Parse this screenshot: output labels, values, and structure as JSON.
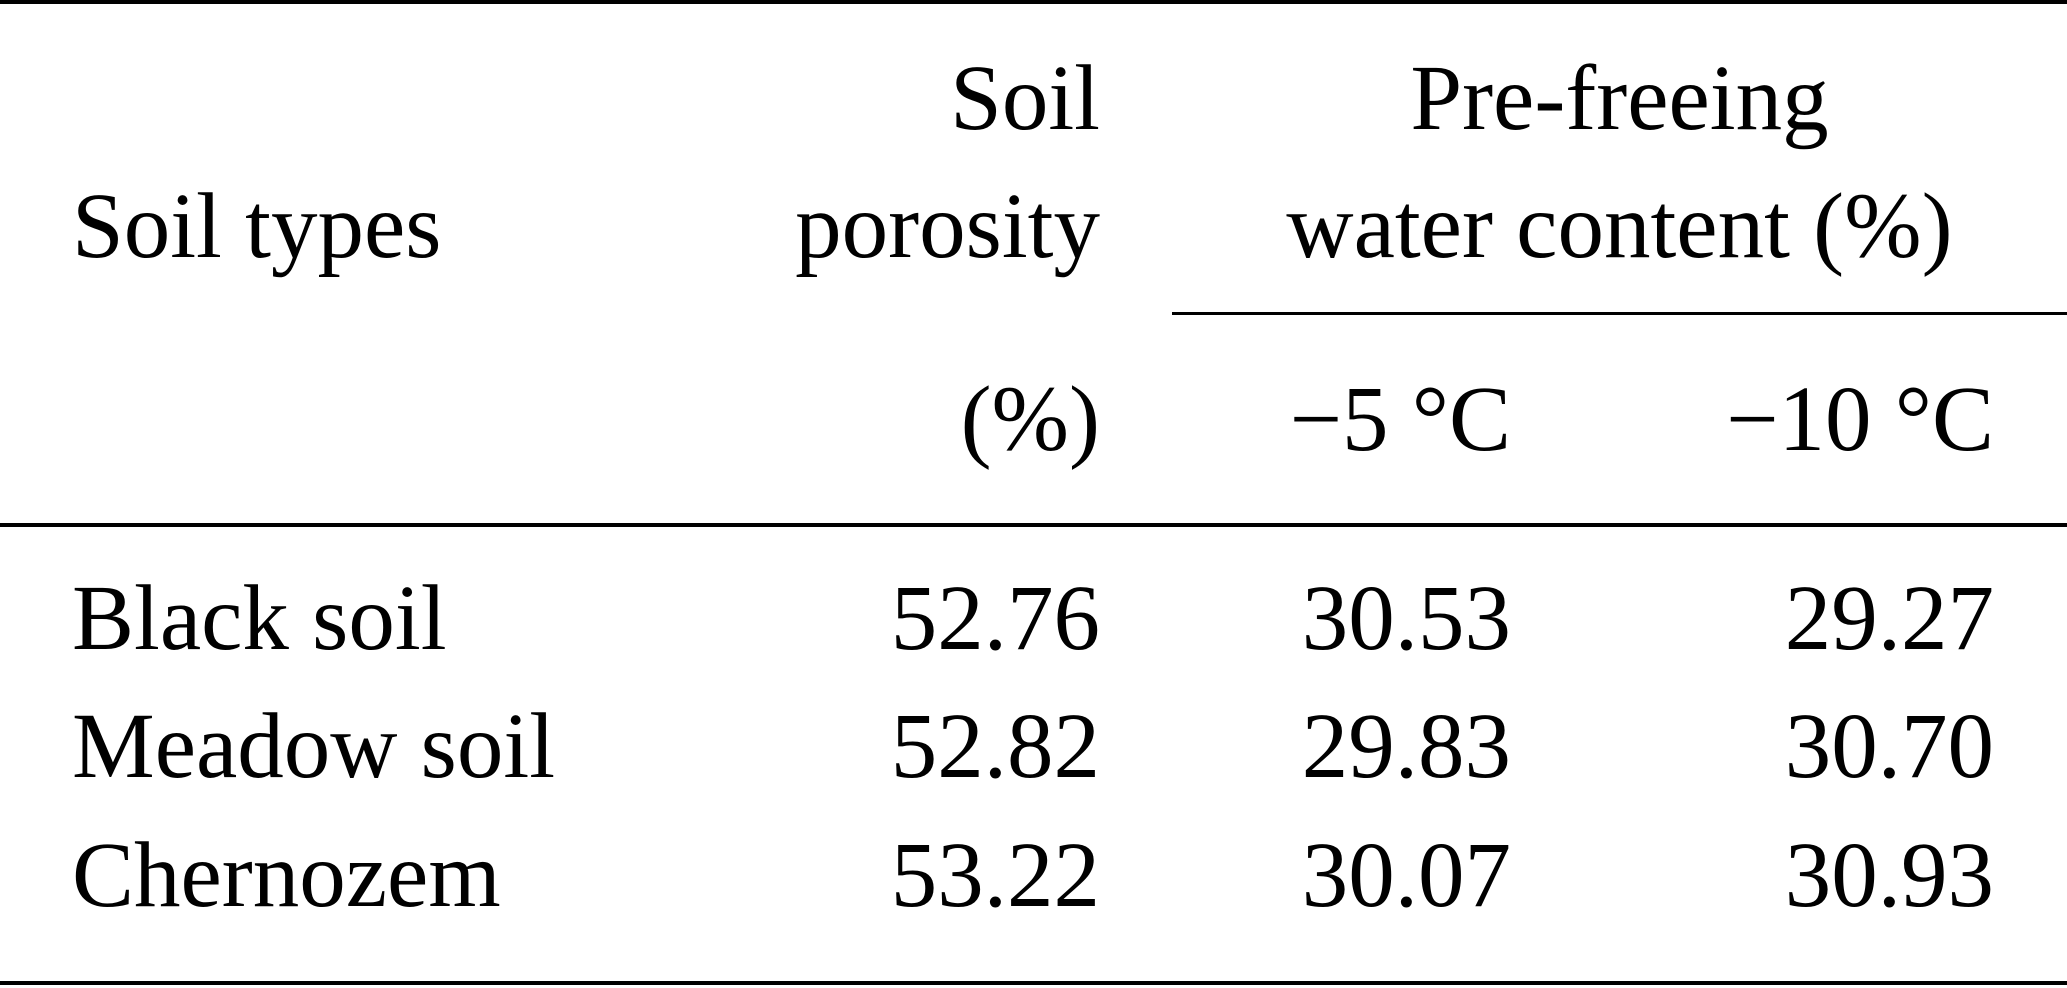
{
  "table": {
    "header": {
      "soil_types": "Soil types",
      "porosity_line1": "Soil",
      "porosity_line2": "porosity",
      "porosity_unit": "(%)",
      "water_line1": "Pre-freeing",
      "water_line2": "water content (%)",
      "temp_minus5": "−5 °C",
      "temp_minus10": "−10 °C"
    },
    "rows": [
      {
        "soil": "Black soil",
        "porosity": "52.76",
        "t5": "30.53",
        "t10": "29.27"
      },
      {
        "soil": "Meadow soil",
        "porosity": "52.82",
        "t5": "29.83",
        "t10": "30.70"
      },
      {
        "soil": "Chernozem",
        "porosity": "53.22",
        "t5": "30.07",
        "t10": "30.93"
      }
    ]
  }
}
